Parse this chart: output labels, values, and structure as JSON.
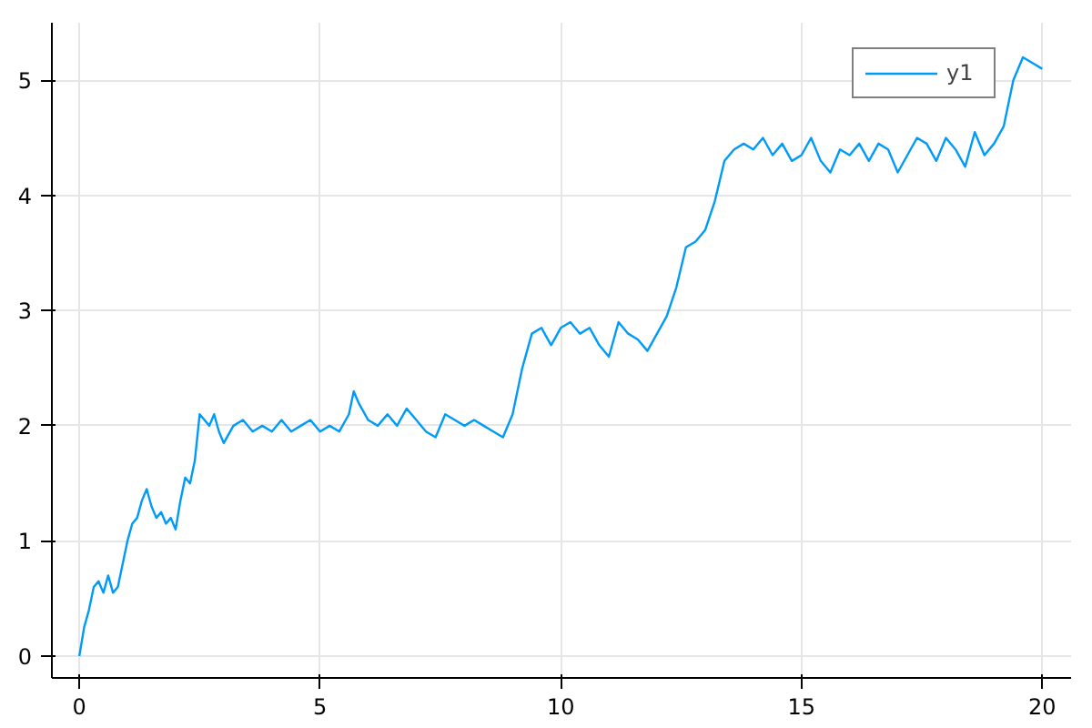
{
  "chart_data": {
    "type": "line",
    "xlim": [
      -0.57,
      20.6
    ],
    "ylim": [
      -0.19,
      5.5
    ],
    "xticks": [
      0,
      5,
      10,
      15,
      20
    ],
    "yticks": [
      0,
      1,
      2,
      3,
      4,
      5
    ],
    "grid": true,
    "legend": "top right",
    "line_style": "solid",
    "x": [
      0,
      0.1,
      0.2,
      0.3,
      0.4,
      0.5,
      0.6,
      0.7,
      0.8,
      0.9,
      1.0,
      1.1,
      1.2,
      1.3,
      1.4,
      1.5,
      1.6,
      1.7,
      1.8,
      1.9,
      2.0,
      2.1,
      2.2,
      2.3,
      2.4,
      2.5,
      2.6,
      2.7,
      2.8,
      2.9,
      3.0,
      3.2,
      3.4,
      3.6,
      3.8,
      4.0,
      4.2,
      4.4,
      4.6,
      4.8,
      5.0,
      5.2,
      5.4,
      5.6,
      5.7,
      5.8,
      6.0,
      6.2,
      6.4,
      6.6,
      6.8,
      7.0,
      7.2,
      7.4,
      7.6,
      7.8,
      8.0,
      8.2,
      8.4,
      8.6,
      8.8,
      9.0,
      9.2,
      9.4,
      9.6,
      9.8,
      10.0,
      10.2,
      10.4,
      10.6,
      10.8,
      11.0,
      11.2,
      11.4,
      11.6,
      11.8,
      12.0,
      12.2,
      12.4,
      12.6,
      12.8,
      13.0,
      13.2,
      13.4,
      13.6,
      13.8,
      14.0,
      14.2,
      14.4,
      14.6,
      14.8,
      15.0,
      15.2,
      15.4,
      15.6,
      15.8,
      16.0,
      16.2,
      16.4,
      16.6,
      16.8,
      17.0,
      17.2,
      17.4,
      17.6,
      17.8,
      18.0,
      18.2,
      18.4,
      18.6,
      18.8,
      19.0,
      19.2,
      19.4,
      19.6,
      19.8,
      20.0
    ],
    "series": [
      {
        "name": "y1",
        "color": "#009af9",
        "values": [
          0.0,
          0.25,
          0.4,
          0.6,
          0.65,
          0.55,
          0.7,
          0.55,
          0.6,
          0.8,
          1.0,
          1.15,
          1.2,
          1.35,
          1.45,
          1.3,
          1.2,
          1.25,
          1.15,
          1.2,
          1.1,
          1.35,
          1.55,
          1.5,
          1.7,
          2.1,
          2.05,
          2.0,
          2.1,
          1.95,
          1.85,
          2.0,
          2.05,
          1.95,
          2.0,
          1.95,
          2.05,
          1.95,
          2.0,
          2.05,
          1.95,
          2.0,
          1.95,
          2.1,
          2.3,
          2.2,
          2.05,
          2.0,
          2.1,
          2.0,
          2.15,
          2.05,
          1.95,
          1.9,
          2.1,
          2.05,
          2.0,
          2.05,
          2.0,
          1.95,
          1.9,
          2.1,
          2.5,
          2.8,
          2.85,
          2.7,
          2.85,
          2.9,
          2.8,
          2.85,
          2.7,
          2.6,
          2.9,
          2.8,
          2.75,
          2.65,
          2.8,
          2.95,
          3.2,
          3.55,
          3.6,
          3.7,
          3.95,
          4.3,
          4.4,
          4.45,
          4.4,
          4.5,
          4.35,
          4.45,
          4.3,
          4.35,
          4.5,
          4.3,
          4.2,
          4.4,
          4.35,
          4.45,
          4.3,
          4.45,
          4.4,
          4.2,
          4.35,
          4.5,
          4.45,
          4.3,
          4.5,
          4.4,
          4.25,
          4.55,
          4.35,
          4.45,
          4.6,
          5.0,
          5.2,
          5.15,
          5.1
        ]
      }
    ]
  }
}
